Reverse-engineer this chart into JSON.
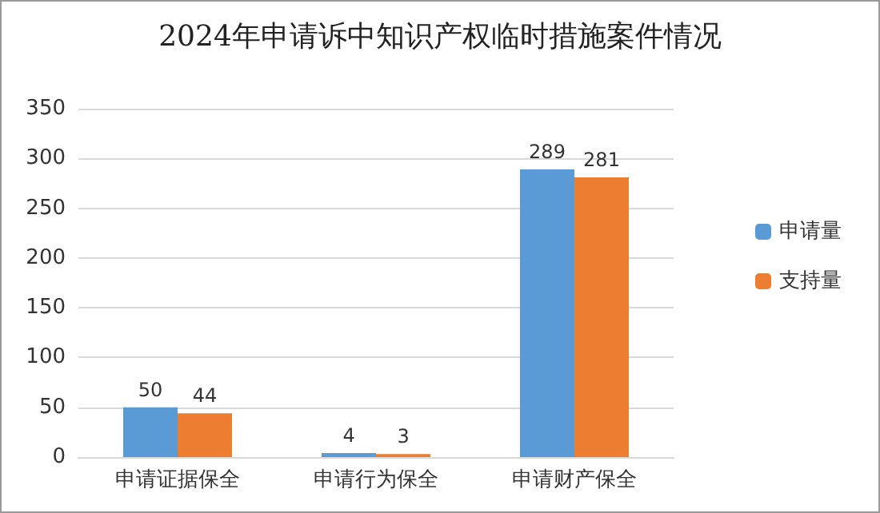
{
  "chart_data": {
    "type": "bar",
    "title": "2024年申请诉中知识产权临时措施案件情况",
    "categories": [
      "申请证据保全",
      "申请行为保全",
      "申请财产保全"
    ],
    "series": [
      {
        "name": "申请量",
        "color": "#5b9bd5",
        "values": [
          50,
          4,
          289
        ]
      },
      {
        "name": "支持量",
        "color": "#ed7d31",
        "values": [
          44,
          3,
          281
        ]
      }
    ],
    "ylim": [
      0,
      350
    ],
    "yticks": [
      0,
      50,
      100,
      150,
      200,
      250,
      300,
      350
    ],
    "grid": "y",
    "legend": "right",
    "data_labels": true
  }
}
